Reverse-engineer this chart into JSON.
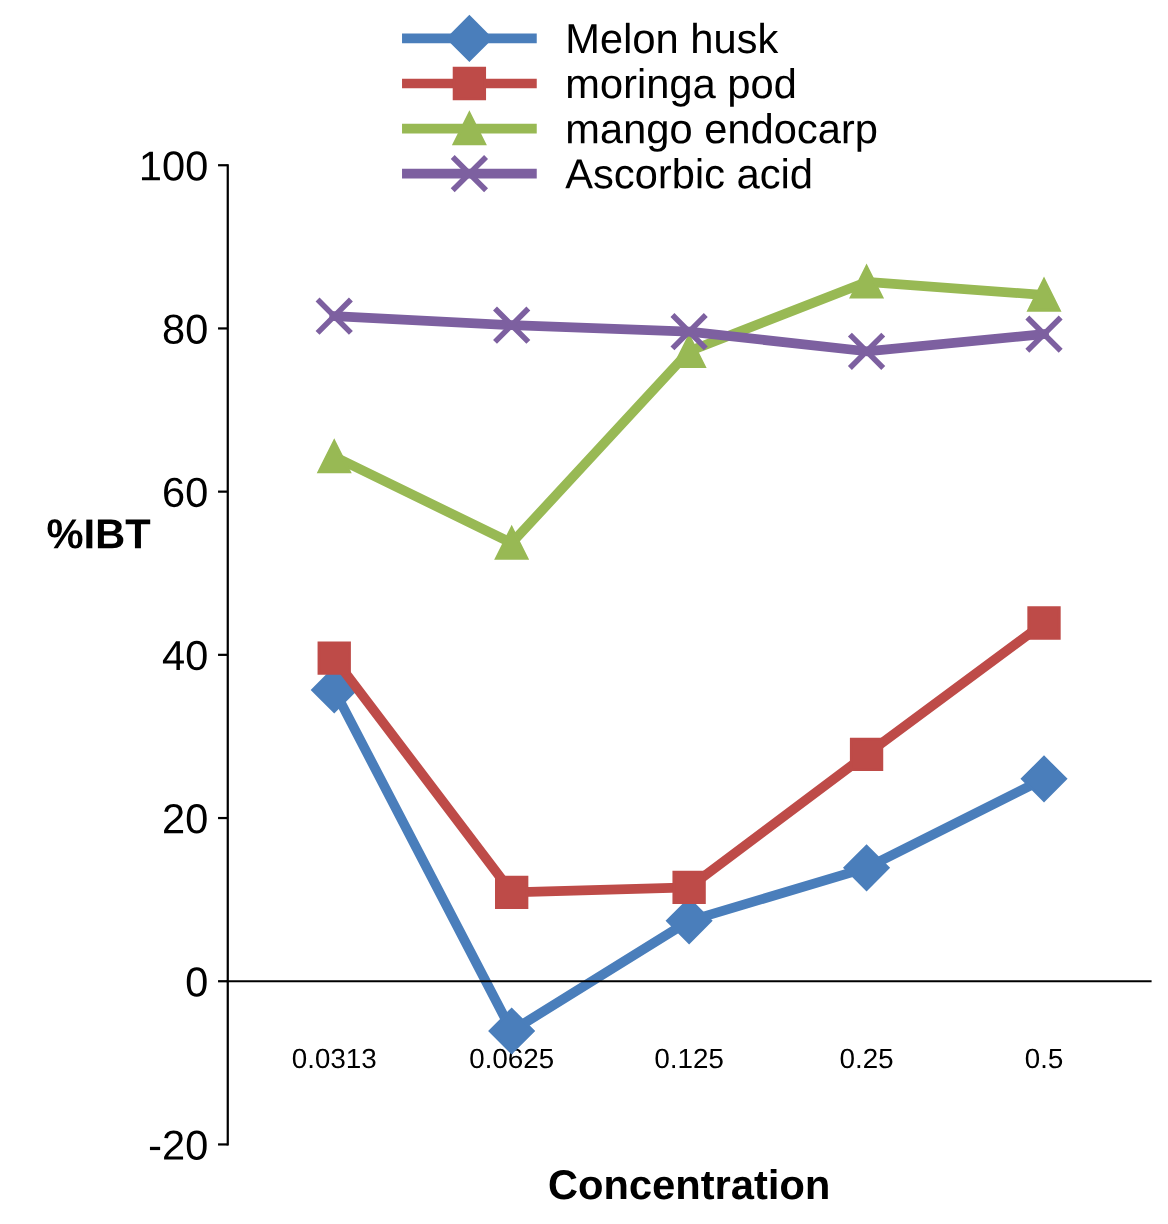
{
  "chart_data": {
    "type": "line",
    "xlabel": "Concentration",
    "ylabel": "%IBT",
    "categories": [
      "0.0313",
      "0.0625",
      "0.125",
      "0.25",
      "0.5"
    ],
    "ylim": [
      -20,
      100
    ],
    "yticks": [
      -20,
      0,
      20,
      40,
      60,
      80,
      100
    ],
    "grid": false,
    "legend": "top",
    "line_style": "solid",
    "series": [
      {
        "name": "Melon husk",
        "color": "#4a7ebb",
        "marker": "diamond",
        "values": [
          35.7,
          -6.1,
          7.4,
          13.9,
          24.8
        ]
      },
      {
        "name": "moringa pod",
        "color": "#be4b48",
        "marker": "square",
        "values": [
          39.6,
          10.9,
          11.5,
          27.8,
          43.9
        ]
      },
      {
        "name": "mango endocarp",
        "color": "#98b954",
        "marker": "triangle",
        "values": [
          64.3,
          53.7,
          77.2,
          85.7,
          84.1
        ]
      },
      {
        "name": "Ascorbic acid",
        "color": "#7d60a0",
        "marker": "cross",
        "values": [
          81.5,
          80.4,
          79.6,
          77.2,
          79.3
        ]
      }
    ]
  }
}
